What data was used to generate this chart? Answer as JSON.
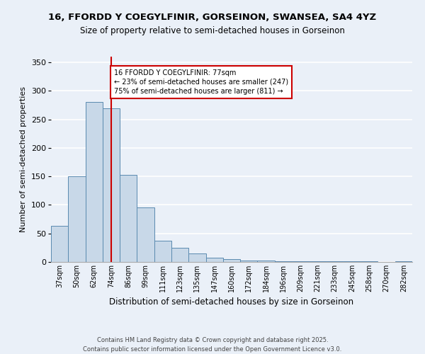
{
  "title_line1": "16, FFORDD Y COEGYLFINIR, GORSEINON, SWANSEA, SA4 4YZ",
  "title_line2": "Size of property relative to semi-detached houses in Gorseinon",
  "xlabel": "Distribution of semi-detached houses by size in Gorseinon",
  "ylabel": "Number of semi-detached properties",
  "categories": [
    "37sqm",
    "50sqm",
    "62sqm",
    "74sqm",
    "86sqm",
    "99sqm",
    "111sqm",
    "123sqm",
    "135sqm",
    "147sqm",
    "160sqm",
    "172sqm",
    "184sqm",
    "196sqm",
    "209sqm",
    "221sqm",
    "233sqm",
    "245sqm",
    "258sqm",
    "270sqm",
    "282sqm"
  ],
  "values": [
    63,
    150,
    280,
    270,
    153,
    96,
    37,
    25,
    15,
    8,
    5,
    3,
    2,
    1,
    1,
    1,
    1,
    1,
    1,
    0,
    1
  ],
  "bar_color": "#c8d8e8",
  "bar_edge_color": "#5a8ab0",
  "vline_x_index": 3,
  "vline_color": "#cc0000",
  "annotation_text": "16 FFORDD Y COEGYLFINIR: 77sqm\n← 23% of semi-detached houses are smaller (247)\n75% of semi-detached houses are larger (811) →",
  "annotation_box_color": "#ffffff",
  "annotation_box_edge": "#cc0000",
  "ylim": [
    0,
    360
  ],
  "yticks": [
    0,
    50,
    100,
    150,
    200,
    250,
    300,
    350
  ],
  "background_color": "#eaf0f8",
  "grid_color": "#ffffff",
  "footer": "Contains HM Land Registry data © Crown copyright and database right 2025.\nContains public sector information licensed under the Open Government Licence v3.0."
}
